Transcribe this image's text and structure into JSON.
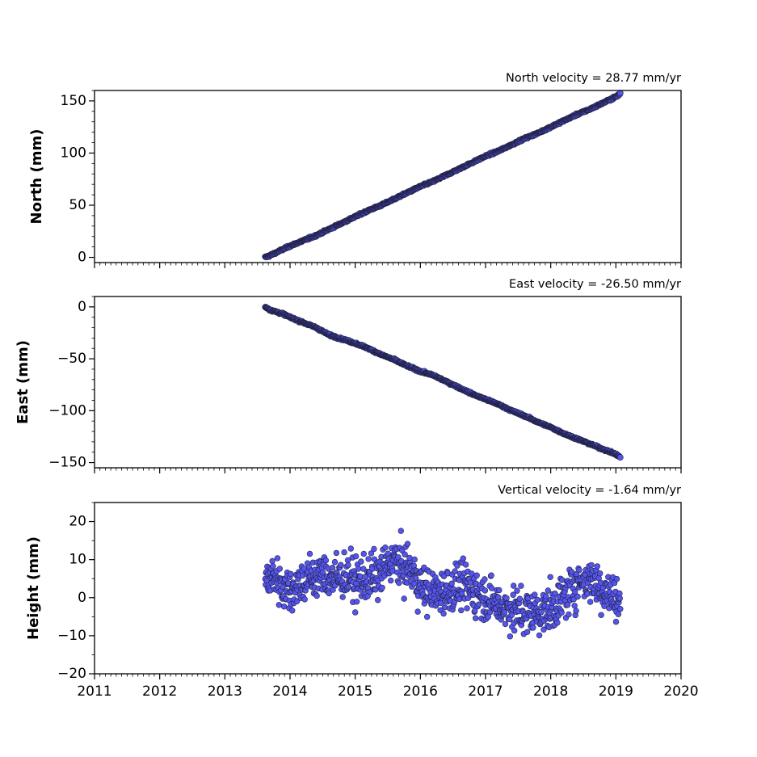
{
  "chart_data": [
    {
      "type": "scatter",
      "title": "North velocity = 28.77 mm/yr",
      "xlabel": "",
      "ylabel": "North (mm)",
      "xlim": [
        2011,
        2020
      ],
      "ylim": [
        -5,
        160
      ],
      "xticks": [
        "2011",
        "2012",
        "2013",
        "2014",
        "2015",
        "2016",
        "2017",
        "2018",
        "2019",
        "2020"
      ],
      "yticks": [
        "0",
        "50",
        "100",
        "150"
      ],
      "show_x_tick_labels": false,
      "marker_color": "#5555ee",
      "marker_edge_color": "#222244",
      "series": [
        {
          "x": [
            2013.62,
            2013.7,
            2013.8,
            2013.9,
            2014.0,
            2014.2,
            2014.4,
            2014.6,
            2014.8,
            2015.0,
            2015.2,
            2015.4,
            2015.6,
            2015.8,
            2016.0,
            2016.2,
            2016.4,
            2016.6,
            2016.8,
            2017.0,
            2017.2,
            2017.4,
            2017.6,
            2017.8,
            2018.0,
            2018.2,
            2018.4,
            2018.6,
            2018.8,
            2019.0,
            2019.07
          ],
          "y": [
            0,
            2,
            5,
            8,
            11,
            16,
            21,
            27,
            33,
            39,
            45,
            50,
            56,
            62,
            68,
            73,
            79,
            85,
            91,
            97,
            102,
            108,
            114,
            119,
            125,
            131,
            137,
            142,
            148,
            154,
            157
          ]
        }
      ]
    },
    {
      "type": "scatter",
      "title": "East velocity = -26.50 mm/yr",
      "xlabel": "",
      "ylabel": "East (mm)",
      "xlim": [
        2011,
        2020
      ],
      "ylim": [
        -155,
        10
      ],
      "xticks": [
        "2011",
        "2012",
        "2013",
        "2014",
        "2015",
        "2016",
        "2017",
        "2018",
        "2019",
        "2020"
      ],
      "yticks": [
        "0",
        "−50",
        "−100",
        "−150"
      ],
      "show_x_tick_labels": false,
      "marker_color": "#5555ee",
      "marker_edge_color": "#222244",
      "series": [
        {
          "x": [
            2013.62,
            2013.7,
            2013.8,
            2013.9,
            2014.0,
            2014.2,
            2014.4,
            2014.6,
            2014.8,
            2015.0,
            2015.2,
            2015.4,
            2015.6,
            2015.8,
            2016.0,
            2016.2,
            2016.4,
            2016.6,
            2016.8,
            2017.0,
            2017.2,
            2017.4,
            2017.6,
            2017.8,
            2018.0,
            2018.2,
            2018.4,
            2018.6,
            2018.8,
            2019.0,
            2019.07
          ],
          "y": [
            0,
            -3,
            -5,
            -7,
            -10,
            -15,
            -20,
            -27,
            -31,
            -35,
            -40,
            -46,
            -51,
            -57,
            -62,
            -66,
            -72,
            -78,
            -84,
            -89,
            -94,
            -100,
            -105,
            -111,
            -116,
            -122,
            -127,
            -132,
            -137,
            -142,
            -145
          ]
        }
      ]
    },
    {
      "type": "scatter",
      "title": "Vertical velocity = -1.64 mm/yr",
      "xlabel": "",
      "ylabel": "Height (mm)",
      "xlim": [
        2011,
        2020
      ],
      "ylim": [
        -20,
        25
      ],
      "xticks": [
        "2011",
        "2012",
        "2013",
        "2014",
        "2015",
        "2016",
        "2017",
        "2018",
        "2019",
        "2020"
      ],
      "yticks": [
        "−20",
        "−10",
        "0",
        "10",
        "20"
      ],
      "show_x_tick_labels": true,
      "marker_color": "#5555ee",
      "marker_edge_color": "#222244",
      "series": [
        {
          "x": [
            2013.62,
            2013.75,
            2013.9,
            2014.0,
            2014.15,
            2014.3,
            2014.5,
            2014.7,
            2014.9,
            2015.0,
            2015.2,
            2015.4,
            2015.5,
            2015.6,
            2015.7,
            2015.8,
            2015.9,
            2016.0,
            2016.2,
            2016.4,
            2016.6,
            2016.8,
            2017.0,
            2017.2,
            2017.4,
            2017.6,
            2017.8,
            2018.0,
            2018.2,
            2018.4,
            2018.6,
            2018.8,
            2019.0,
            2019.07
          ],
          "y": [
            4,
            6,
            3,
            2,
            4,
            5,
            6,
            5,
            6,
            4,
            5,
            6,
            9,
            10,
            8,
            8,
            6,
            3,
            1,
            2,
            3,
            2,
            0,
            -2,
            -3,
            -4,
            -4,
            -3,
            0,
            4,
            5,
            2,
            0,
            -2
          ]
        }
      ]
    }
  ]
}
